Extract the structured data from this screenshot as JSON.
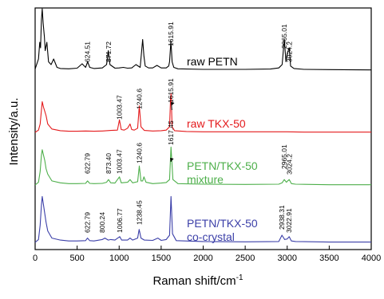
{
  "chart_data": {
    "type": "line",
    "xlabel": "Raman shift/cm",
    "xlabel_sup": "-1",
    "ylabel": "Intensity/a.u.",
    "xlim": [
      0,
      4000
    ],
    "xticks": [
      "0",
      "500",
      "1000",
      "1500",
      "2000",
      "2500",
      "3000",
      "3500",
      "4000"
    ],
    "series": [
      {
        "label_lines": [
          "raw PETN"
        ],
        "color": "#000000",
        "peak_labels": [
          "624.51",
          "871.72",
          "1615.91",
          "2965.01",
          "3024.2"
        ],
        "x": [
          0,
          40,
          55,
          65,
          75,
          85,
          95,
          110,
          120,
          140,
          160,
          190,
          220,
          260,
          300,
          400,
          500,
          560,
          600,
          625,
          650,
          700,
          800,
          850,
          871,
          890,
          950,
          1000,
          1050,
          1100,
          1150,
          1200,
          1250,
          1280,
          1295,
          1310,
          1350,
          1400,
          1450,
          1500,
          1560,
          1590,
          1600,
          1616,
          1630,
          1650,
          1700,
          2000,
          2500,
          2800,
          2900,
          2940,
          2965,
          2985,
          3000,
          3024,
          3040,
          3080,
          3200,
          3500,
          4000
        ],
        "y": [
          0.4,
          4,
          10,
          8,
          18,
          22,
          17,
          12,
          7,
          10,
          3,
          2,
          4,
          1,
          0.6,
          0.5,
          0.7,
          2.3,
          1,
          3,
          1,
          0.6,
          0.8,
          2,
          7,
          2,
          0.7,
          0.8,
          1,
          0.7,
          0.8,
          2,
          1,
          11,
          5,
          1.5,
          0.8,
          0.8,
          1.7,
          0.8,
          0.8,
          1.5,
          3,
          10.5,
          3,
          1,
          0.5,
          0.3,
          0.3,
          0.4,
          0.8,
          2,
          11,
          3,
          6,
          8,
          1.5,
          0.6,
          0.3,
          0.2,
          0.1
        ]
      },
      {
        "label_lines": [
          "raw TKX-50"
        ],
        "color": "#e41a1c",
        "peak_labels": [
          "1003.47",
          "1240.6",
          "1615.91"
        ],
        "x": [
          0,
          40,
          60,
          75,
          85,
          100,
          110,
          130,
          150,
          200,
          300,
          400,
          500,
          600,
          700,
          800,
          900,
          980,
          1003,
          1025,
          1060,
          1100,
          1130,
          1150,
          1180,
          1220,
          1240,
          1260,
          1300,
          1400,
          1500,
          1560,
          1600,
          1612,
          1618,
          1630,
          1660,
          1800,
          2000,
          2500,
          2900,
          3000,
          3200,
          4000
        ],
        "y": [
          0,
          0.8,
          3,
          8,
          11,
          9,
          8,
          6,
          3,
          1.2,
          0.6,
          0.4,
          0.4,
          0.5,
          0.4,
          0.5,
          0.7,
          0.8,
          4.5,
          1,
          0.8,
          1.5,
          3,
          1,
          0.8,
          1.5,
          9.5,
          2,
          0.7,
          0.5,
          0.6,
          0.8,
          2,
          12.5,
          14,
          2,
          0.6,
          0.3,
          0.2,
          0.2,
          0.2,
          0.2,
          0.1,
          0.1
        ]
      },
      {
        "label_lines": [
          "PETN/TKX-50",
          "mixture"
        ],
        "color": "#4daf4a",
        "peak_labels": [
          "622.79",
          "873.40",
          "1003.47",
          "1240.6",
          "1617.45",
          "2965.01",
          "3024.2"
        ],
        "x": [
          0,
          40,
          60,
          75,
          85,
          100,
          115,
          130,
          150,
          200,
          300,
          400,
          500,
          600,
          623,
          650,
          700,
          800,
          850,
          873,
          900,
          950,
          1003,
          1025,
          1100,
          1130,
          1160,
          1220,
          1240,
          1260,
          1280,
          1295,
          1320,
          1400,
          1500,
          1560,
          1600,
          1617,
          1640,
          1700,
          2000,
          2500,
          2900,
          2940,
          2965,
          2990,
          3005,
          3024,
          3050,
          3100,
          3500,
          4000
        ],
        "y": [
          0,
          1,
          5,
          11,
          13,
          11,
          9,
          6,
          4,
          1.5,
          0.8,
          0.5,
          0.5,
          0.6,
          1.5,
          0.6,
          0.5,
          0.6,
          1,
          2,
          0.8,
          0.7,
          3,
          0.8,
          1,
          2,
          0.8,
          1.2,
          7,
          1.5,
          1.5,
          3,
          1,
          0.5,
          0.7,
          0.9,
          2,
          14,
          2,
          0.5,
          0.3,
          0.2,
          0.3,
          0.8,
          2,
          1,
          1.5,
          2,
          0.5,
          0.3,
          0.1,
          0.1
        ]
      },
      {
        "label_lines": [
          "PETN/TKX-50",
          "co-crystal"
        ],
        "color": "#3b3fa8",
        "peak_labels": [
          "622.79",
          "800.24",
          "1006.77",
          "1238.45",
          "2938.31",
          "3022.91"
        ],
        "x": [
          0,
          40,
          60,
          75,
          85,
          100,
          115,
          130,
          150,
          200,
          300,
          400,
          500,
          600,
          623,
          650,
          700,
          800,
          830,
          870,
          900,
          950,
          1007,
          1030,
          1100,
          1130,
          1160,
          1220,
          1238,
          1260,
          1300,
          1400,
          1460,
          1500,
          1560,
          1600,
          1617,
          1635,
          1680,
          2000,
          2500,
          2900,
          2938,
          2970,
          3000,
          3023,
          3050,
          3100,
          3500,
          4000
        ],
        "y": [
          0,
          1,
          6,
          13,
          16,
          13,
          10,
          7,
          4,
          1.5,
          0.8,
          0.5,
          0.5,
          0.6,
          1.5,
          0.6,
          0.5,
          1,
          1.5,
          0.8,
          1,
          0.8,
          2,
          0.8,
          0.8,
          1.5,
          0.8,
          1.5,
          4.5,
          1.5,
          0.8,
          0.7,
          1.5,
          0.7,
          1,
          2.5,
          16,
          3,
          0.6,
          0.3,
          0.2,
          0.3,
          2.5,
          1,
          1.2,
          2,
          0.5,
          0.3,
          0.1,
          0.1
        ]
      }
    ]
  }
}
